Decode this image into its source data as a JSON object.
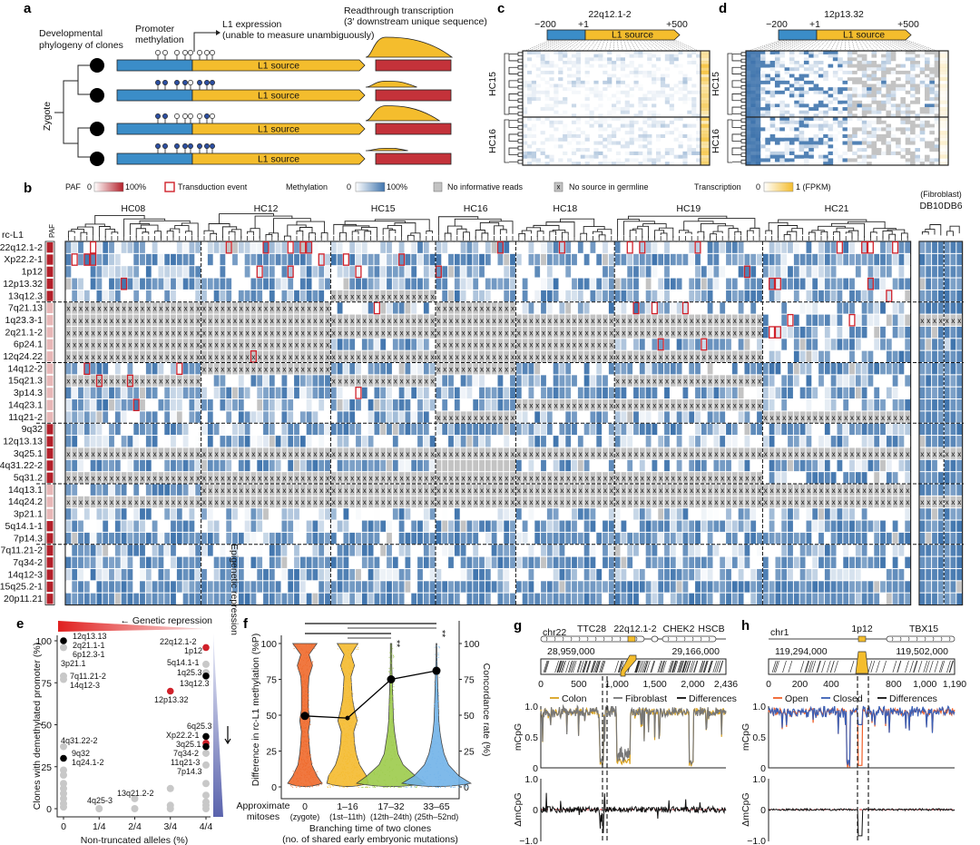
{
  "colors": {
    "promoter": "#3b8dc8",
    "l1": "#f4bd2d",
    "readthrough": "#c4323a",
    "meth": "#3f74ad",
    "nodata": "#c3c3c3",
    "transduction": "#d0212a",
    "paf": "#b3202a"
  },
  "panel_a": {
    "label": "a",
    "phylogeny": [
      "Developmental",
      "phylogeny of clones"
    ],
    "promoter": [
      "Promoter",
      "methylation"
    ],
    "expression": [
      "L1 expression",
      "(unable to measure unambiguously)"
    ],
    "readthrough": [
      "Readthrough transcription",
      "(3′ downstream unique sequence)"
    ],
    "zygote": "Zygote",
    "source": "L1 source",
    "clones": [
      {
        "methylated": [
          0,
          0,
          0,
          0,
          0,
          0,
          0,
          0
        ],
        "readthrough": 1.0
      },
      {
        "methylated": [
          1,
          1,
          1,
          1,
          0,
          1,
          1,
          1
        ],
        "readthrough": 0.3
      },
      {
        "methylated": [
          1,
          1,
          0,
          0,
          0,
          0,
          1,
          0
        ],
        "readthrough": 0.75
      },
      {
        "methylated": [
          1,
          1,
          1,
          1,
          1,
          1,
          1,
          1
        ],
        "readthrough": 0.12
      }
    ]
  },
  "panel_b": {
    "label": "b",
    "legend": {
      "paf": "PAF",
      "paf_min": "0",
      "paf_max": "100%",
      "transduction": "Transduction event",
      "meth": "Methylation",
      "meth_min": "0",
      "meth_max": "100%",
      "noinfo": "No informative reads",
      "nosource": "No source in germline",
      "nosource_glyph": "x",
      "trans": "Transcription",
      "trans_min": "0",
      "trans_max": "1 (FPKM)"
    },
    "row_header": "rc-L1",
    "paf_header": "PAF",
    "fibroblast": "(Fibroblast)",
    "groups": [
      {
        "name": "HC08",
        "cols": 22
      },
      {
        "name": "HC12",
        "cols": 21
      },
      {
        "name": "HC15",
        "cols": 17
      },
      {
        "name": "HC16",
        "cols": 13
      },
      {
        "name": "HC18",
        "cols": 16
      },
      {
        "name": "HC19",
        "cols": 24
      },
      {
        "name": "HC21",
        "cols": 24
      }
    ],
    "fibro_groups": [
      {
        "name": "DB10",
        "cols": 4
      },
      {
        "name": "DB6",
        "cols": 3
      }
    ],
    "rows": [
      {
        "name": "22q12.1-2",
        "paf": 1,
        "meth": 0.25,
        "x": [],
        "tx": [
          4,
          26,
          32,
          36,
          38,
          39,
          70,
          80,
          91,
          93,
          102,
          125,
          129,
          130,
          134
        ]
      },
      {
        "name": "Xp22.2-1",
        "paf": 1,
        "meth": 0.75,
        "x": [],
        "tx": [
          1,
          3,
          4,
          41,
          45,
          54
        ]
      },
      {
        "name": "1p12",
        "paf": 1,
        "meth": 0.3,
        "x": [],
        "tx": [
          31,
          36,
          47,
          60,
          110
        ]
      },
      {
        "name": "12p13.32",
        "paf": 1,
        "meth": 0.55,
        "x": [],
        "tx": [
          9,
          114,
          115,
          130
        ]
      },
      {
        "name": "13q12.3",
        "paf": 1,
        "meth": 0.45,
        "x": [
          "HC15"
        ],
        "tx": [
          133
        ]
      },
      {
        "name": "7q21.13",
        "paf": 0.3,
        "meth": 0.35,
        "x": [
          "HC08",
          "HC12",
          "HC16"
        ],
        "tx": [
          50,
          92,
          95,
          100
        ]
      },
      {
        "name": "1q23.3-1",
        "paf": 0.2,
        "meth": 0.5,
        "x": [
          "HC08",
          "HC12",
          "HC15",
          "HC16",
          "HC18",
          "HC19",
          "fibro"
        ],
        "tx": [
          117,
          127
        ]
      },
      {
        "name": "2q21.1-2",
        "paf": 0.2,
        "meth": 0.5,
        "x": [
          "HC08",
          "HC12",
          "HC15",
          "HC16",
          "HC18",
          "HC19"
        ],
        "tx": [
          114,
          115
        ]
      },
      {
        "name": "6p24.1",
        "paf": 0.25,
        "meth": 0.55,
        "x": [
          "HC08",
          "HC12",
          "HC16",
          "HC18"
        ],
        "tx": [
          96,
          103
        ]
      },
      {
        "name": "12q24.22",
        "paf": 0.2,
        "meth": 0.4,
        "x": [
          "HC08",
          "HC12",
          "HC15",
          "HC16",
          "HC18",
          "HC19"
        ],
        "tx": [
          30
        ]
      },
      {
        "name": "14q12-2",
        "paf": 0.35,
        "meth": 0.6,
        "x": [
          "HC12",
          "HC16"
        ],
        "tx": [
          3,
          18
        ]
      },
      {
        "name": "15q21.3",
        "paf": 0.35,
        "meth": 0.5,
        "x": [
          "HC08",
          "HC15",
          "HC19"
        ],
        "tx": [
          5,
          10
        ]
      },
      {
        "name": "3p14.3",
        "paf": 0.3,
        "meth": 0.55,
        "x": [],
        "tx": [
          47
        ]
      },
      {
        "name": "14q23.1",
        "paf": 0.3,
        "meth": 0.45,
        "x": [
          "HC18",
          "HC19"
        ],
        "tx": [
          11
        ]
      },
      {
        "name": "11q21-2",
        "paf": 0.3,
        "meth": 0.4,
        "x": [
          "HC16",
          "HC21"
        ],
        "tx": []
      },
      {
        "name": "9q32",
        "paf": 1,
        "meth": 0.6,
        "x": [],
        "tx": []
      },
      {
        "name": "12q13.13",
        "paf": 1,
        "meth": 0.35,
        "x": [],
        "tx": []
      },
      {
        "name": "3q25.1",
        "paf": 1,
        "meth": 0.7,
        "x": [
          "HC08",
          "HC12",
          "HC15",
          "HC16",
          "HC18",
          "HC19",
          "HC21",
          "fibro"
        ],
        "tx": []
      },
      {
        "name": "4q31.22-2",
        "paf": 1,
        "meth": 0.6,
        "x": [],
        "grey": [
          "HC16"
        ],
        "tx": []
      },
      {
        "name": "5q31.2",
        "paf": 1,
        "meth": 0.6,
        "x": [
          "HC08",
          "HC12",
          "HC15",
          "HC16",
          "HC18",
          "HC19"
        ],
        "tx": []
      },
      {
        "name": "14q13.1",
        "paf": 0.3,
        "meth": 0.6,
        "x": [
          "HC12",
          "HC15",
          "HC16",
          "HC18",
          "HC19",
          "HC21"
        ],
        "tx": []
      },
      {
        "name": "14q24.2",
        "paf": 0.3,
        "meth": 0.6,
        "x": [
          "HC08",
          "HC12",
          "HC15",
          "HC16",
          "HC18",
          "HC19",
          "HC21",
          "fibro"
        ],
        "tx": []
      },
      {
        "name": "3p21.1",
        "paf": 0.3,
        "meth": 0.25,
        "x": [],
        "tx": []
      },
      {
        "name": "5q14.1-1",
        "paf": 1,
        "meth": 0.55,
        "x": [],
        "tx": []
      },
      {
        "name": "7p14.3",
        "paf": 1,
        "meth": 0.8,
        "x": [],
        "tx": []
      },
      {
        "name": "7q11.21-2",
        "paf": 1,
        "meth": 0.4,
        "x": [],
        "tx": []
      },
      {
        "name": "7q34-2",
        "paf": 1,
        "meth": 0.8,
        "x": [],
        "tx": []
      },
      {
        "name": "14q12-3",
        "paf": 1,
        "meth": 0.4,
        "x": [],
        "tx": []
      },
      {
        "name": "15q25.2-1",
        "paf": 1,
        "meth": 0.85,
        "x": [],
        "tx": []
      },
      {
        "name": "20p11.21",
        "paf": 1,
        "meth": 0.85,
        "x": [],
        "tx": []
      }
    ],
    "row_groups": [
      5,
      5,
      5,
      5,
      5,
      5
    ]
  },
  "panel_c": {
    "label": "c",
    "title": "22q12.1-2",
    "ticks": [
      "−200",
      "+1",
      "+500"
    ],
    "source": "L1 source",
    "clones": [
      "HC15",
      "HC16"
    ],
    "promoter_methylated": false
  },
  "panel_d": {
    "label": "d",
    "title": "12p13.32",
    "ticks": [
      "−200",
      "+1",
      "+500"
    ],
    "source": "L1 source",
    "clones": [
      "HC15",
      "HC16"
    ],
    "promoter_methylated": true
  },
  "chart_data": [
    {
      "panel": "e",
      "type": "scatter",
      "xlabel": "Non-truncated alleles (%)",
      "ylabel": "Clones with demethylated promoter (%)",
      "xticks": [
        "0",
        "1/4",
        "2/4",
        "3/4",
        "4/4"
      ],
      "yticks": [
        "0",
        "25",
        "50",
        "75",
        "100"
      ],
      "ylim": [
        0,
        100
      ],
      "annotation_top": "← Genetic repression",
      "annotation_right": "Epigenetic repression",
      "points": [
        {
          "x": 0,
          "y": 100,
          "c": "black",
          "labels": [
            "12q13.13",
            "2q21.1-1",
            "6p12.3-1",
            "3p21.1"
          ]
        },
        {
          "x": 0,
          "y": 30,
          "c": "black",
          "labels": [
            "9q32",
            "1q24.1-2"
          ]
        },
        {
          "x": 1,
          "y": 96,
          "c": "red",
          "labels": [
            "22q12.1-2",
            "1p12"
          ]
        },
        {
          "x": 0.75,
          "y": 70,
          "c": "red",
          "labels": [
            "12p13.32"
          ]
        },
        {
          "x": 1,
          "y": 79,
          "c": "black",
          "labels": [
            "13q12.3"
          ]
        },
        {
          "x": 1,
          "y": 86,
          "c": "grey",
          "labels": [
            "5q14.1-1"
          ]
        },
        {
          "x": 1,
          "y": 81,
          "c": "grey",
          "labels": [
            "1q25.3"
          ]
        },
        {
          "x": 1,
          "y": 43,
          "c": "black",
          "labels": [
            "6q25.3"
          ]
        },
        {
          "x": 1,
          "y": 39,
          "c": "red",
          "labels": [
            "Xp22.2-1"
          ]
        },
        {
          "x": 1,
          "y": 37,
          "c": "black",
          "labels": [
            "3q25.1"
          ]
        },
        {
          "x": 1,
          "y": 33,
          "c": "grey",
          "labels": [
            "7q34-2",
            "11q21-3"
          ]
        },
        {
          "x": 1,
          "y": 26,
          "c": "grey",
          "labels": [
            "7p14.3"
          ]
        },
        {
          "x": 0,
          "y": 79,
          "c": "grey",
          "labels": [
            "7q11.21-2",
            "14q12-3"
          ]
        },
        {
          "x": 0,
          "y": 37,
          "c": "grey",
          "labels": [
            "4q31.22-2"
          ]
        },
        {
          "x": 0.5,
          "y": 6,
          "c": "grey",
          "labels": [
            "13q21.2-2"
          ]
        },
        {
          "x": 0.25,
          "y": 0,
          "c": "grey",
          "labels": [
            "4q25-3"
          ]
        },
        {
          "x": 0,
          "y": 96,
          "c": "grey",
          "labels": []
        },
        {
          "x": 0,
          "y": 77,
          "c": "grey",
          "labels": []
        },
        {
          "x": 0,
          "y": 23,
          "c": "grey",
          "labels": []
        },
        {
          "x": 0,
          "y": 20,
          "c": "grey",
          "labels": []
        },
        {
          "x": 0,
          "y": 15,
          "c": "grey",
          "labels": []
        },
        {
          "x": 0,
          "y": 12,
          "c": "grey",
          "labels": []
        },
        {
          "x": 0,
          "y": 9,
          "c": "grey",
          "labels": []
        },
        {
          "x": 0,
          "y": 6,
          "c": "grey",
          "labels": []
        },
        {
          "x": 0,
          "y": 3,
          "c": "grey",
          "labels": []
        },
        {
          "x": 0,
          "y": 1,
          "c": "grey",
          "labels": []
        },
        {
          "x": 0.5,
          "y": 0,
          "c": "grey",
          "labels": []
        },
        {
          "x": 0.75,
          "y": 12,
          "c": "grey",
          "labels": []
        },
        {
          "x": 0.75,
          "y": 2,
          "c": "grey",
          "labels": []
        },
        {
          "x": 0.75,
          "y": 0,
          "c": "grey",
          "labels": []
        },
        {
          "x": 1,
          "y": 15,
          "c": "grey",
          "labels": []
        },
        {
          "x": 1,
          "y": 8,
          "c": "grey",
          "labels": []
        },
        {
          "x": 1,
          "y": 4,
          "c": "grey",
          "labels": []
        },
        {
          "x": 1,
          "y": 2,
          "c": "grey",
          "labels": []
        },
        {
          "x": 1,
          "y": 0,
          "c": "grey",
          "labels": []
        }
      ]
    },
    {
      "panel": "f",
      "type": "violin",
      "ylabel": "Difference in rc-L1 methylation (%P)",
      "y2label": "Concordance rate (%)",
      "xlabel": [
        "Branching time of two clones",
        "(no. of shared early embryonic mutations)"
      ],
      "xrow_label": [
        "Approximate",
        "mitoses"
      ],
      "yticks": [
        "0",
        "25",
        "50",
        "75",
        "100"
      ],
      "ylim": [
        0,
        100
      ],
      "categories": [
        {
          "label": "0",
          "sub": "(zygote)",
          "color": "#ef6a2c"
        },
        {
          "label": "1–16",
          "sub": "(1st–11th)",
          "color": "#f5bb2f"
        },
        {
          "label": "17–32",
          "sub": "(12th–24th)",
          "color": "#9dcb4c"
        },
        {
          "label": "33–65",
          "sub": "(25th–52nd)",
          "color": "#72b3e8"
        }
      ],
      "concordance": [
        49.5,
        48,
        75,
        81
      ],
      "significance": [
        {
          "from": 0,
          "to": 3,
          "label": "**"
        },
        {
          "from": 1,
          "to": 3,
          "label": ""
        },
        {
          "from": 0,
          "to": 2,
          "label": "**"
        },
        {
          "from": 1,
          "to": 2,
          "label": ""
        }
      ]
    },
    {
      "panel": "g",
      "type": "line",
      "label": "g",
      "chrom": "chr22",
      "genes": [
        "TTC28",
        "22q12.1-2",
        "CHEK2",
        "HSCB"
      ],
      "coord_left": "28,959,000",
      "coord_right": "29,166,000",
      "xticks": [
        "0",
        "500",
        "1,000",
        "1,500",
        "2,000",
        "2,436"
      ],
      "xmax": 2436,
      "series": [
        {
          "name": "Colon",
          "color": "#d9a21f"
        },
        {
          "name": "Fibroblast",
          "color": "#777777"
        },
        {
          "name": "Differences",
          "color": "#111111"
        }
      ],
      "ylabel": "mCpG",
      "yticks": [
        "1.0",
        "0.5",
        "0"
      ],
      "dlabel": "ΔmCpG",
      "dticks": [
        "1.0",
        "0",
        "−1.0"
      ],
      "dips": [
        [
          780,
          830,
          0.05
        ],
        [
          1000,
          1180,
          0.05
        ],
        [
          1950,
          2010,
          0.02
        ]
      ]
    },
    {
      "panel": "h",
      "type": "line",
      "label": "h",
      "chrom": "chr1",
      "genes": [
        "1p12",
        "TBX15"
      ],
      "coord_left": "119,294,000",
      "coord_right": "119,502,000",
      "xticks": [
        "0",
        "200",
        "400",
        "800",
        "1,000",
        "1,190"
      ],
      "xmax": 1190,
      "series": [
        {
          "name": "Open",
          "color": "#f0602a"
        },
        {
          "name": "Closed",
          "color": "#3b5fb5"
        },
        {
          "name": "Differences",
          "color": "#111111"
        }
      ],
      "ylabel": "mCpG",
      "yticks": [
        "1.0",
        "0.5",
        "0"
      ],
      "dlabel": "ΔmCpG",
      "dticks": [
        "1.0",
        "0",
        "−1.0"
      ],
      "dips": [
        [
          500,
          520,
          0
        ],
        [
          570,
          600,
          0.05
        ]
      ]
    }
  ]
}
